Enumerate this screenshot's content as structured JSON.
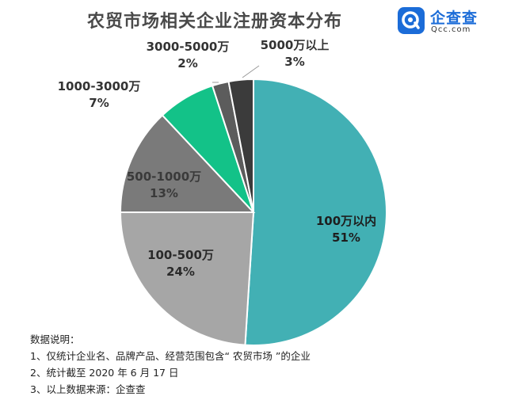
{
  "header": {
    "title": "农贸市场相关企业注册资本分布"
  },
  "logo": {
    "name": "企查查",
    "sub": "Qcc.com"
  },
  "colors": {
    "title": "#4a4a4a",
    "brand": "#1b6cd8"
  },
  "chart_data": {
    "type": "pie",
    "title": "农贸市场相关企业注册资本分布",
    "slices": [
      {
        "label": "100万以内",
        "value": 51,
        "pct_text": "51%",
        "color": "#42b0b4"
      },
      {
        "label": "100-500万",
        "value": 24,
        "pct_text": "24%",
        "color": "#a6a6a6"
      },
      {
        "label": "500-1000万",
        "value": 13,
        "pct_text": "13%",
        "color": "#7a7a7a"
      },
      {
        "label": "1000-3000万",
        "value": 7,
        "pct_text": "7%",
        "color": "#13c288"
      },
      {
        "label": "3000-5000万",
        "value": 2,
        "pct_text": "2%",
        "color": "#5c5c5c"
      },
      {
        "label": "5000万以上",
        "value": 3,
        "pct_text": "3%",
        "color": "#3b3b3b"
      }
    ]
  },
  "notes": {
    "heading": "数据说明：",
    "lines": [
      "1、仅统计企业名、品牌产品、经营范围包含“ 农贸市场 ”的企业",
      "2、统计截至 2020 年 6 月 17 日",
      "3、以上数据来源：企查查"
    ]
  }
}
